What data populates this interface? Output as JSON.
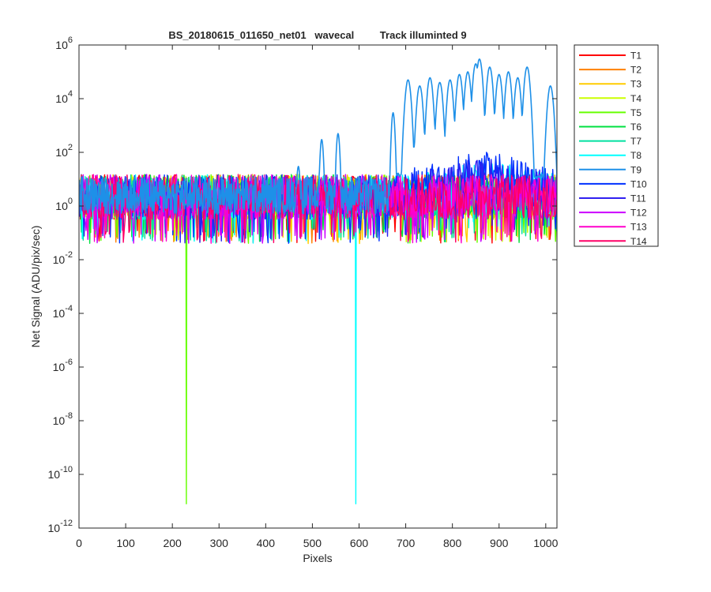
{
  "chart_data": {
    "type": "line",
    "title": "BS_20180615_011650_net01   wavecal         Track illuminted 9",
    "xlabel": "Pixels",
    "ylabel": "Net Signal (ADU/pix/sec)",
    "xlim": [
      0,
      1024
    ],
    "ylim_log10": [
      -12,
      6
    ],
    "yscale": "log",
    "grid": false,
    "legend_position": "outside-top-right",
    "x_ticks": [
      0,
      100,
      200,
      300,
      400,
      500,
      600,
      700,
      800,
      900,
      1000
    ],
    "x_tick_labels": [
      "0",
      "100",
      "200",
      "300",
      "400",
      "500",
      "600",
      "700",
      "800",
      "900",
      "1000"
    ],
    "y_ticks_log10": [
      -12,
      -10,
      -8,
      -6,
      -4,
      -2,
      0,
      2,
      4,
      6
    ],
    "y_tick_labels": [
      {
        "base": "10",
        "exp": "-12"
      },
      {
        "base": "10",
        "exp": "-10"
      },
      {
        "base": "10",
        "exp": "-8"
      },
      {
        "base": "10",
        "exp": "-6"
      },
      {
        "base": "10",
        "exp": "-4"
      },
      {
        "base": "10",
        "exp": "-2"
      },
      {
        "base": "10",
        "exp": "0"
      },
      {
        "base": "10",
        "exp": "2"
      },
      {
        "base": "10",
        "exp": "4"
      },
      {
        "base": "10",
        "exp": "6"
      }
    ],
    "noise_floor": {
      "typical_min": 0.04,
      "typical_max": 15
    },
    "series": [
      {
        "name": "T1",
        "color": "#ff0000"
      },
      {
        "name": "T2",
        "color": "#ff8000"
      },
      {
        "name": "T3",
        "color": "#ffcc00"
      },
      {
        "name": "T4",
        "color": "#ccff00"
      },
      {
        "name": "T5",
        "color": "#66ff00"
      },
      {
        "name": "T6",
        "color": "#00e040"
      },
      {
        "name": "T7",
        "color": "#00e0a0"
      },
      {
        "name": "T8",
        "color": "#00ffff"
      },
      {
        "name": "T9",
        "color": "#1e90e8"
      },
      {
        "name": "T10",
        "color": "#0030ff"
      },
      {
        "name": "T11",
        "color": "#3020f0"
      },
      {
        "name": "T12",
        "color": "#cc00ff"
      },
      {
        "name": "T13",
        "color": "#ff00cc"
      },
      {
        "name": "T14",
        "color": "#ff0066"
      }
    ],
    "features": {
      "T5_dip": {
        "x": 230,
        "y_min": 8e-12
      },
      "T8_dip": {
        "x": 593,
        "y_min": 8e-12
      },
      "T9_emission_peaks": [
        {
          "x": 470,
          "y": 30
        },
        {
          "x": 520,
          "y": 300
        },
        {
          "x": 555,
          "y": 500
        },
        {
          "x": 673,
          "y": 3000
        },
        {
          "x": 705,
          "y": 50000
        },
        {
          "x": 730,
          "y": 30000
        },
        {
          "x": 752,
          "y": 60000
        },
        {
          "x": 773,
          "y": 40000
        },
        {
          "x": 795,
          "y": 50000
        },
        {
          "x": 815,
          "y": 80000
        },
        {
          "x": 833,
          "y": 100000
        },
        {
          "x": 850,
          "y": 200000
        },
        {
          "x": 858,
          "y": 300000
        },
        {
          "x": 880,
          "y": 150000
        },
        {
          "x": 900,
          "y": 80000
        },
        {
          "x": 920,
          "y": 100000
        },
        {
          "x": 940,
          "y": 60000
        },
        {
          "x": 960,
          "y": 150000
        },
        {
          "x": 1010,
          "y": 30000
        }
      ],
      "broad_hump": {
        "x_start": 680,
        "x_peak": 860,
        "x_end": 1024,
        "peak_y": 50
      }
    }
  }
}
